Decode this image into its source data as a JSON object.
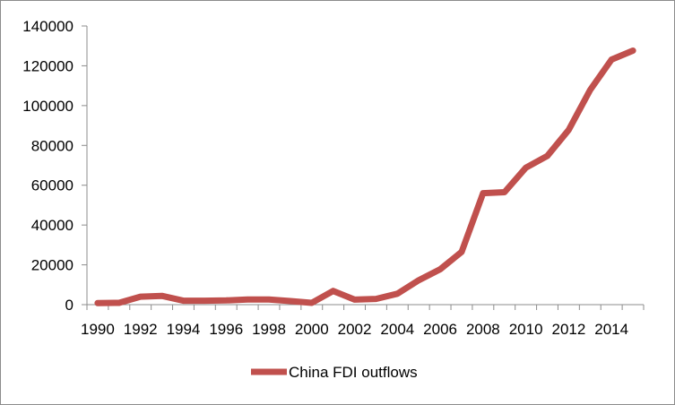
{
  "chart_data": {
    "type": "line",
    "title": "",
    "xlabel": "",
    "ylabel": "",
    "x": [
      1990,
      1991,
      1992,
      1993,
      1994,
      1995,
      1996,
      1997,
      1998,
      1999,
      2000,
      2001,
      2002,
      2003,
      2004,
      2005,
      2006,
      2007,
      2008,
      2009,
      2010,
      2011,
      2012,
      2013,
      2014,
      2015
    ],
    "series": [
      {
        "name": "China FDI outflows",
        "color": "#c0504d",
        "values": [
          830,
          910,
          4000,
          4400,
          2000,
          2000,
          2100,
          2600,
          2600,
          1800,
          900,
          6900,
          2500,
          2900,
          5500,
          12300,
          17800,
          26500,
          56000,
          56500,
          68800,
          74700,
          87800,
          107800,
          123100,
          127600
        ]
      }
    ],
    "xlim": [
      1990,
      2015
    ],
    "ylim": [
      0,
      140000
    ],
    "y_ticks": [
      "0",
      "20000",
      "40000",
      "60000",
      "80000",
      "100000",
      "120000",
      "140000"
    ],
    "x_ticks": [
      "1990",
      "1992",
      "1994",
      "1996",
      "1998",
      "2000",
      "2002",
      "2004",
      "2006",
      "2008",
      "2010",
      "2012",
      "2014"
    ],
    "grid": false,
    "legend_position": "bottom"
  }
}
